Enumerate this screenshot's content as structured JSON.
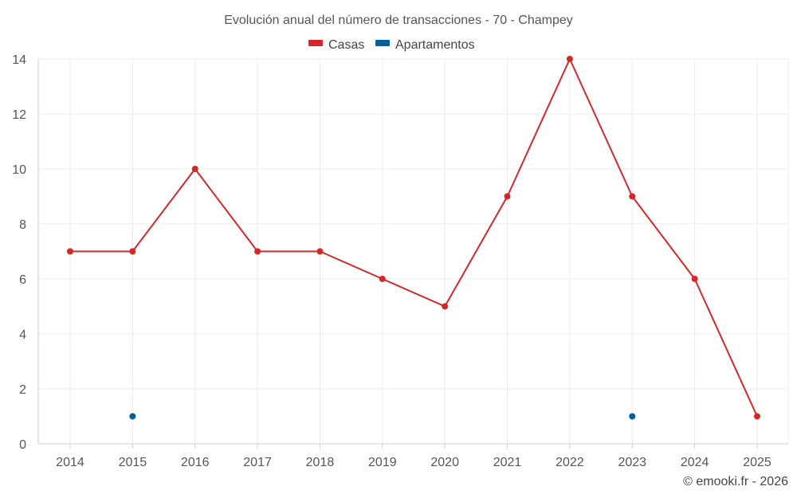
{
  "chart_data": {
    "type": "line",
    "title": "Evolución anual del número de transacciones - 70 - Champey",
    "categories": [
      "2014",
      "2015",
      "2016",
      "2017",
      "2018",
      "2019",
      "2020",
      "2021",
      "2022",
      "2023",
      "2024",
      "2025"
    ],
    "series": [
      {
        "name": "Casas",
        "color": "#d62728",
        "values": [
          7,
          7,
          10,
          7,
          7,
          6,
          5,
          9,
          14,
          9,
          6,
          1
        ],
        "show_line": true
      },
      {
        "name": "Apartamentos",
        "color": "#005f9e",
        "values": [
          null,
          1,
          null,
          null,
          null,
          null,
          null,
          null,
          null,
          1,
          null,
          null
        ],
        "show_line": false
      }
    ],
    "ylim": [
      0,
      14
    ],
    "yticks": [
      0,
      2,
      4,
      6,
      8,
      10,
      12,
      14
    ],
    "xlabel": "",
    "ylabel": "",
    "grid": true,
    "legend_position": "top-center",
    "credit": "© emooki.fr - 2026"
  }
}
